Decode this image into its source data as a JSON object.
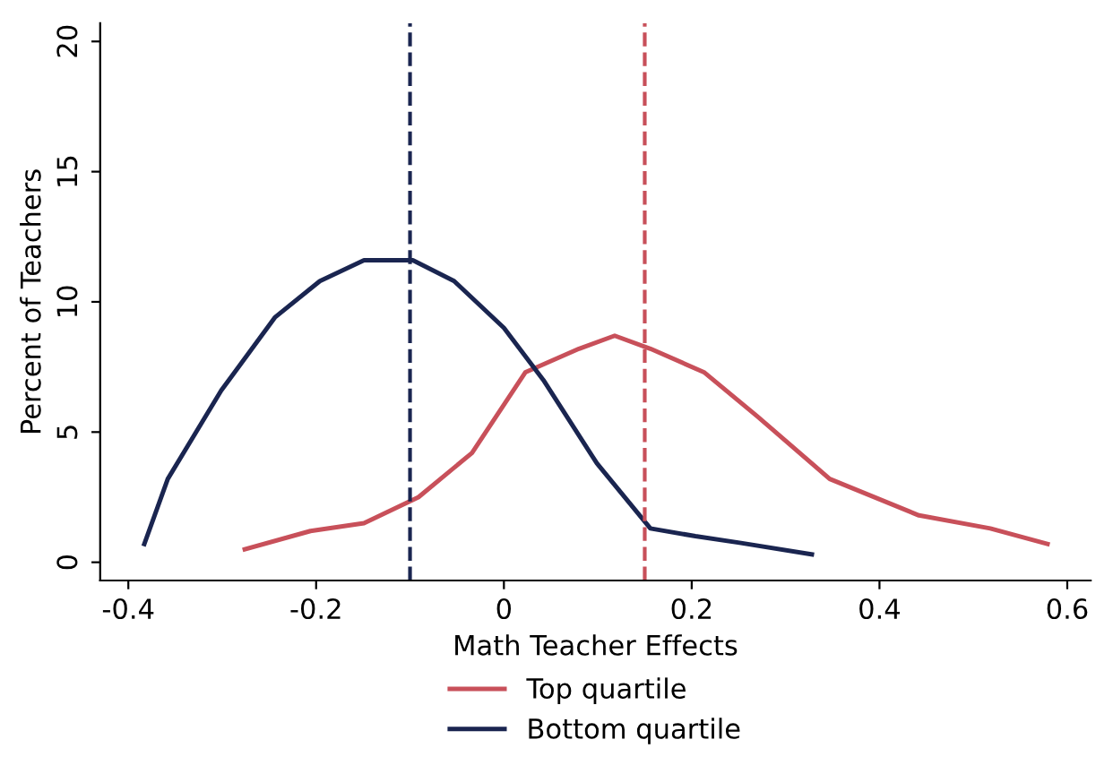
{
  "chart_data": {
    "type": "line",
    "xlabel": "Math Teacher Effects",
    "ylabel": "Percent of Teachers",
    "xlim": [
      -0.43,
      0.625
    ],
    "ylim": [
      -0.7,
      20.7
    ],
    "xticks": [
      {
        "value": -0.4,
        "label": "-0.4"
      },
      {
        "value": -0.2,
        "label": "-0.2"
      },
      0,
      0.2,
      0.4,
      0.6
    ],
    "yticks": [
      0,
      5,
      10,
      15,
      20
    ],
    "grid": false,
    "legend": "bottom",
    "line_style": "solid",
    "marker": "none",
    "series": [
      {
        "name": "Top quartile",
        "color": "#c8505a",
        "x": [
          -0.276,
          -0.206,
          -0.149,
          -0.091,
          -0.034,
          0.023,
          0.08,
          0.118,
          0.156,
          0.213,
          0.27,
          0.347,
          0.442,
          0.518,
          0.579
        ],
        "values": [
          0.5,
          1.2,
          1.5,
          2.5,
          4.2,
          7.3,
          8.2,
          8.7,
          8.2,
          7.3,
          5.6,
          3.2,
          1.8,
          1.3,
          0.7
        ]
      },
      {
        "name": "Bottom quartile",
        "color": "#1a2550",
        "x": [
          -0.383,
          -0.358,
          -0.301,
          -0.244,
          -0.196,
          -0.149,
          -0.097,
          -0.053,
          0,
          0.042,
          0.099,
          0.156,
          0.204,
          0.251,
          0.328
        ],
        "values": [
          0.7,
          3.2,
          6.6,
          9.4,
          10.8,
          11.6,
          11.6,
          10.8,
          9.0,
          7.0,
          3.8,
          1.3,
          1.0,
          0.75,
          0.3
        ]
      }
    ],
    "ref_lines": [
      {
        "axis": "x",
        "value": -0.1,
        "color": "#1a2550",
        "line_style": "dashed"
      },
      {
        "axis": "x",
        "value": 0.15,
        "color": "#c8505a",
        "line_style": "dashed"
      }
    ]
  }
}
